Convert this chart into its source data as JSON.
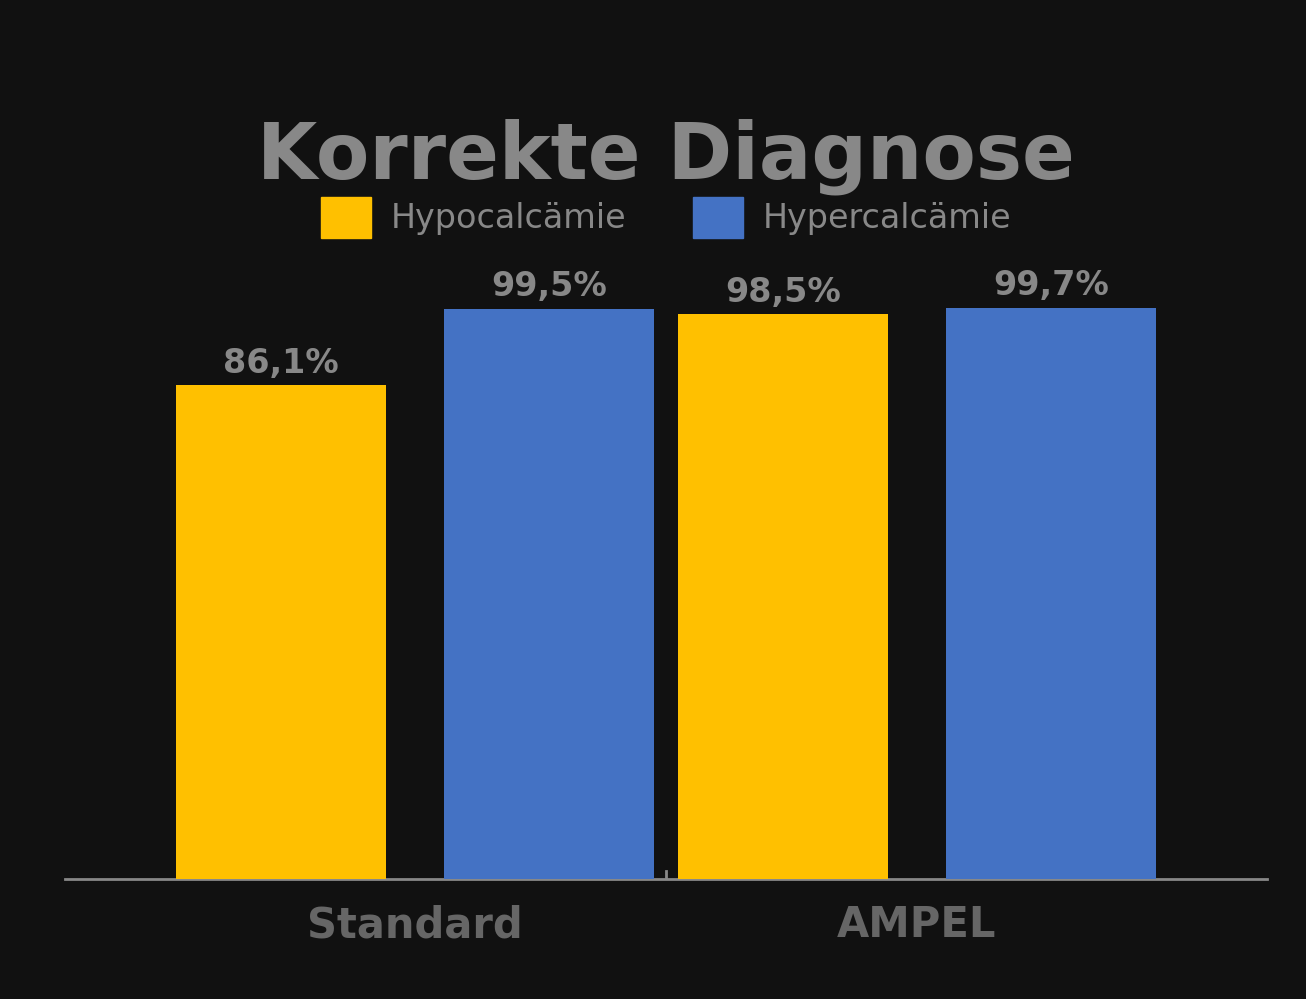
{
  "title": "Korrekte Diagnose",
  "background_color": "#111111",
  "title_color": "#888888",
  "title_fontsize": 56,
  "title_fontweight": "bold",
  "groups": [
    "Standard",
    "AMPEL"
  ],
  "series": [
    "Hypocalcämie",
    "Hypercalcämie"
  ],
  "values": [
    [
      86.1,
      99.5
    ],
    [
      98.5,
      99.7
    ]
  ],
  "labels": [
    [
      "86,1%",
      "99,5%"
    ],
    [
      "98,5%",
      "99,7%"
    ]
  ],
  "bar_colors": [
    "#FFC000",
    "#4472C4"
  ],
  "label_color": "#888888",
  "label_fontsize": 24,
  "xlabel_color": "#666666",
  "xlabel_fontsize": 30,
  "xlabel_fontweight": "bold",
  "legend_fontsize": 24,
  "legend_text_color": "#888888",
  "axis_color": "#888888",
  "ylim": [
    0,
    115
  ],
  "bar_width": 0.18,
  "group_centers": [
    0.3,
    0.73
  ],
  "bar_gap": 0.05,
  "xlim": [
    0.0,
    1.03
  ]
}
